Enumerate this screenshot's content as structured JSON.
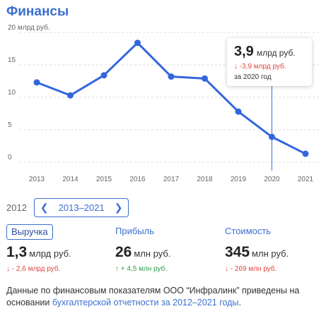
{
  "title": "Финансы",
  "chart_data": {
    "type": "line",
    "x": [
      "2013",
      "2014",
      "2015",
      "2016",
      "2017",
      "2018",
      "2019",
      "2020",
      "2021"
    ],
    "values": [
      12.3,
      10.3,
      13.4,
      18.4,
      13.2,
      12.9,
      7.8,
      3.9,
      1.3
    ],
    "y_ticks": [
      "20 млрд руб.",
      "15",
      "10",
      "5",
      "0"
    ],
    "ylim": [
      0,
      20
    ],
    "grid": true,
    "line_color": "#3366dd",
    "highlight_index": 7
  },
  "tooltip": {
    "value": "3,9",
    "unit": "млрд руб.",
    "delta": "↓ -3,9 млрд руб.",
    "period": "за 2020 год"
  },
  "range": {
    "start_year": "2012",
    "label": "2013–2021",
    "prev_icon": "chevron-left-icon",
    "next_icon": "chevron-right-icon"
  },
  "metrics": [
    {
      "label": "Выручка",
      "value": "1,3",
      "unit": "млрд руб.",
      "delta": "↓ - 2,6 млрд руб.",
      "direction": "down",
      "active": true
    },
    {
      "label": "Прибыль",
      "value": "26",
      "unit": "млн руб.",
      "delta": "↑ + 4,5 млн руб.",
      "direction": "up",
      "active": false
    },
    {
      "label": "Стоимость",
      "value": "345",
      "unit": "млн руб.",
      "delta": "↓ - 269 млн руб.",
      "direction": "down",
      "active": false
    }
  ],
  "footer": {
    "text": "Данные по финансовым показателям ООО “Инфралинк” приведены на основании ",
    "link": "бухгалтерской отчетности за 2012–2021 годы",
    "end": "."
  },
  "colors": {
    "accent": "#3b6fd1",
    "negative": "#e0443e",
    "positive": "#2e9e4a"
  }
}
